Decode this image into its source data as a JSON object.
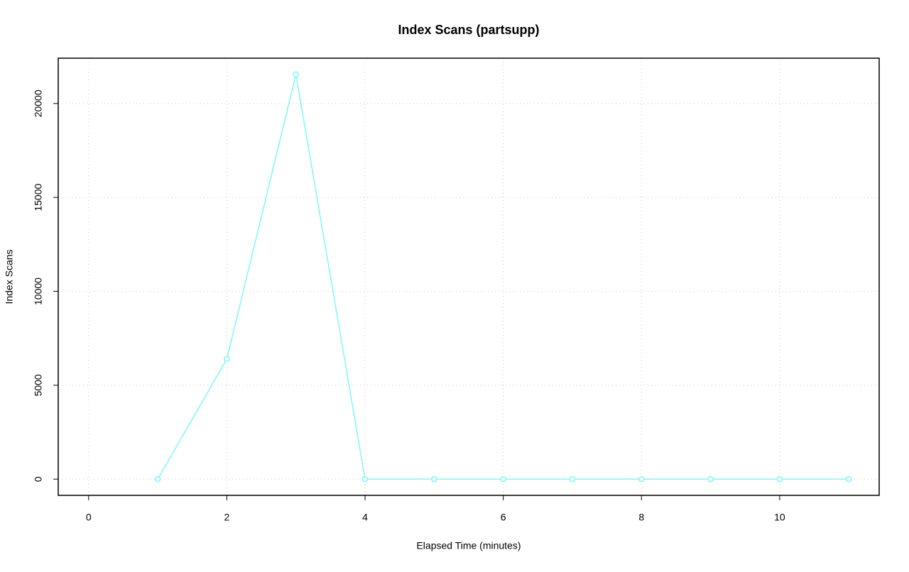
{
  "chart_data": {
    "type": "line",
    "title": "Index Scans (partsupp)",
    "x_label": "Elapsed Time (minutes)",
    "y_label": "Index Scans",
    "x": [
      1,
      2,
      3,
      4,
      5,
      6,
      7,
      8,
      9,
      10,
      11
    ],
    "series": [
      {
        "name": "Index Scans",
        "color": "#7ff7f7",
        "values": [
          0,
          6400,
          21550,
          0,
          0,
          0,
          0,
          0,
          0,
          0,
          0
        ]
      }
    ],
    "xlim": [
      -0.44,
      11.44
    ],
    "ylim": [
      -862,
      22412
    ],
    "xticks": [
      0,
      2,
      4,
      6,
      8,
      10
    ],
    "yticks": [
      0,
      5000,
      10000,
      15000,
      20000
    ],
    "grid": true
  }
}
